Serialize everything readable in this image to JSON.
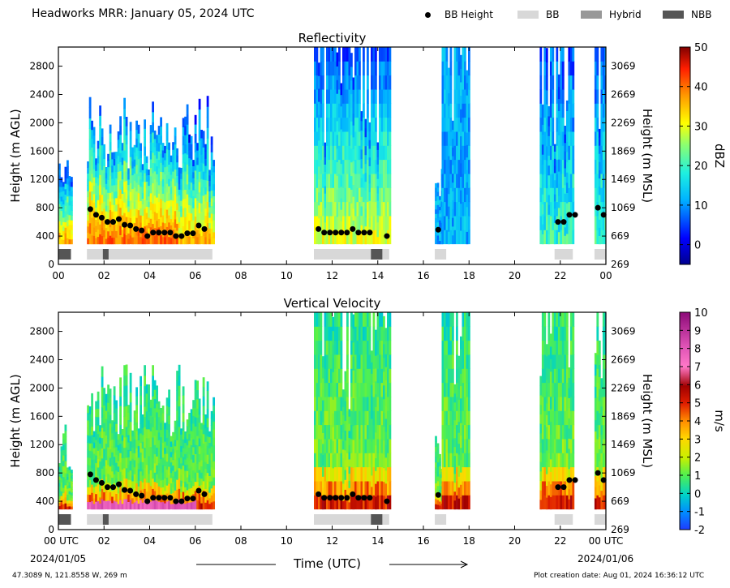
{
  "title": "Headworks MRR:  January 05, 2024 UTC",
  "legend": {
    "bb_height": "BB Height",
    "bb": "BB",
    "hybrid": "Hybrid",
    "nbb": "NBB",
    "colors": {
      "bb": "#d8d8d8",
      "hybrid": "#989898",
      "nbb": "#555555"
    }
  },
  "x_axis": {
    "title": "Time (UTC)",
    "tick_labels": [
      "00",
      "02",
      "04",
      "06",
      "08",
      "10",
      "12",
      "14",
      "16",
      "18",
      "20",
      "22",
      "00"
    ],
    "bottom_tick_labels": [
      "00 UTC",
      "02",
      "04",
      "06",
      "08",
      "10",
      "12",
      "14",
      "16",
      "18",
      "20",
      "22",
      "00 UTC"
    ],
    "date_left": "2024/01/05",
    "date_right": "2024/01/06",
    "range_hours": [
      0,
      24
    ]
  },
  "footer": {
    "location": "47.3089 N, 121.8558 W, 269 m",
    "creation": "Plot creation date: Aug 01, 2024 16:36:12 UTC"
  },
  "chart_data": [
    {
      "type": "heatmap",
      "title": "Reflectivity",
      "ylabel": "Height (m AGL)",
      "ylabel_right": "Height (m MSL)",
      "yticks_left": [
        0,
        400,
        800,
        1200,
        1600,
        2000,
        2400,
        2800
      ],
      "yticks_right": [
        269,
        669,
        1069,
        1469,
        1869,
        2269,
        2669,
        3069
      ],
      "ylim": [
        0,
        3070
      ],
      "colorbar": {
        "label": "dBZ",
        "range": [
          -5,
          50
        ],
        "ticks": [
          0,
          10,
          20,
          30,
          40,
          50
        ]
      }
    },
    {
      "type": "heatmap",
      "title": "Vertical Velocity",
      "ylabel": "Height (m AGL)",
      "ylabel_right": "Height (m MSL)",
      "yticks_left": [
        0,
        400,
        800,
        1200,
        1600,
        2000,
        2400,
        2800
      ],
      "yticks_right": [
        269,
        669,
        1069,
        1469,
        1869,
        2269,
        2669,
        3069
      ],
      "ylim": [
        0,
        3070
      ],
      "colorbar": {
        "label": "m/s",
        "range": [
          -2,
          10
        ],
        "ticks": [
          -2,
          -1,
          0,
          1,
          2,
          3,
          4,
          5,
          6,
          7,
          8,
          9,
          10
        ]
      }
    }
  ],
  "precip_segments": [
    {
      "start": 0.0,
      "end": 0.55,
      "peak": 1500
    },
    {
      "start": 1.25,
      "end": 6.8,
      "peak": 2400
    },
    {
      "start": 11.2,
      "end": 14.5,
      "peak": 3070
    },
    {
      "start": 16.5,
      "end": 16.8,
      "peak": 1400
    },
    {
      "start": 16.8,
      "end": 18.0,
      "peak": 3070
    },
    {
      "start": 21.1,
      "end": 22.6,
      "peak": 3070
    },
    {
      "start": 23.5,
      "end": 24.0,
      "peak": 3070
    }
  ],
  "bb_height_points": [
    [
      1.4,
      780
    ],
    [
      1.65,
      700
    ],
    [
      1.9,
      660
    ],
    [
      2.15,
      600
    ],
    [
      2.4,
      600
    ],
    [
      2.65,
      640
    ],
    [
      2.9,
      560
    ],
    [
      3.15,
      550
    ],
    [
      3.4,
      500
    ],
    [
      3.65,
      480
    ],
    [
      3.9,
      400
    ],
    [
      4.15,
      450
    ],
    [
      4.4,
      450
    ],
    [
      4.65,
      450
    ],
    [
      4.9,
      450
    ],
    [
      5.15,
      400
    ],
    [
      5.4,
      400
    ],
    [
      5.65,
      440
    ],
    [
      5.9,
      440
    ],
    [
      6.15,
      550
    ],
    [
      6.4,
      500
    ],
    [
      11.4,
      500
    ],
    [
      11.65,
      450
    ],
    [
      11.9,
      450
    ],
    [
      12.15,
      450
    ],
    [
      12.4,
      450
    ],
    [
      12.65,
      450
    ],
    [
      12.9,
      500
    ],
    [
      13.15,
      450
    ],
    [
      13.4,
      450
    ],
    [
      13.65,
      450
    ],
    [
      14.4,
      400
    ],
    [
      16.65,
      490
    ],
    [
      21.9,
      600
    ],
    [
      22.15,
      600
    ],
    [
      22.4,
      700
    ],
    [
      22.65,
      700
    ],
    [
      23.65,
      800
    ],
    [
      23.9,
      700
    ]
  ],
  "bb_type_bars": [
    {
      "type": "nbb",
      "start": 0.0,
      "end": 0.55
    },
    {
      "type": "bb",
      "start": 1.25,
      "end": 6.75
    },
    {
      "type": "nbb",
      "start": 1.95,
      "end": 2.2
    },
    {
      "type": "bb",
      "start": 11.2,
      "end": 14.5
    },
    {
      "type": "nbb",
      "start": 13.7,
      "end": 14.2
    },
    {
      "type": "bb",
      "start": 16.5,
      "end": 17.0
    },
    {
      "type": "bb",
      "start": 21.75,
      "end": 22.55
    },
    {
      "type": "bb",
      "start": 23.5,
      "end": 24.0
    }
  ]
}
